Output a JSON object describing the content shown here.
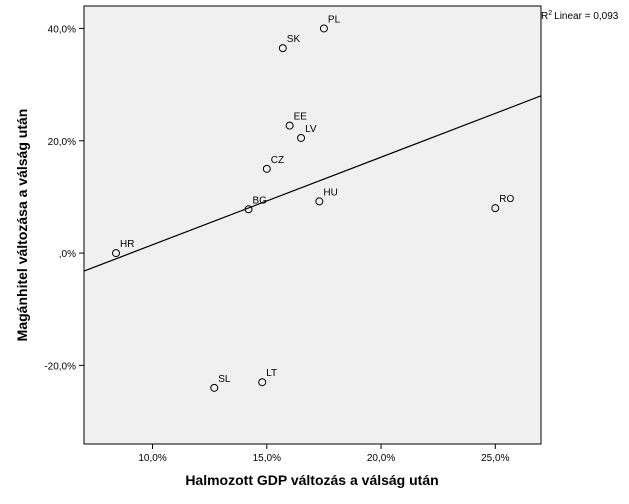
{
  "chart_data": {
    "type": "scatter",
    "xlabel": "Halmozott GDP változás a válság után",
    "ylabel": "Magánhitel változása a válság után",
    "xlim": [
      7.0,
      27.0
    ],
    "ylim": [
      -34.0,
      44.0
    ],
    "x_ticks": [
      {
        "value": 10,
        "label": "10,0%"
      },
      {
        "value": 15,
        "label": "15,0%"
      },
      {
        "value": 20,
        "label": "20,0%"
      },
      {
        "value": 25,
        "label": "25,0%"
      }
    ],
    "y_ticks": [
      {
        "value": -20,
        "label": "-20,0%"
      },
      {
        "value": 0,
        "label": ",0%"
      },
      {
        "value": 20,
        "label": "20,0%"
      },
      {
        "value": 40,
        "label": "40,0%"
      }
    ],
    "points": [
      {
        "label": "PL",
        "x": 17.5,
        "y": 40.0
      },
      {
        "label": "SK",
        "x": 15.7,
        "y": 36.5
      },
      {
        "label": "EE",
        "x": 16.0,
        "y": 22.7
      },
      {
        "label": "LV",
        "x": 16.5,
        "y": 20.5
      },
      {
        "label": "CZ",
        "x": 15.0,
        "y": 15.0
      },
      {
        "label": "BG",
        "x": 14.2,
        "y": 7.8
      },
      {
        "label": "HU",
        "x": 17.3,
        "y": 9.2
      },
      {
        "label": "RO",
        "x": 25.0,
        "y": 8.0
      },
      {
        "label": "HR",
        "x": 8.4,
        "y": 0.0
      },
      {
        "label": "SL",
        "x": 12.7,
        "y": -24.0
      },
      {
        "label": "LT",
        "x": 14.8,
        "y": -23.0
      }
    ],
    "fit_line": {
      "x": [
        7.0,
        27.0
      ],
      "y": [
        -3.2,
        28.0
      ]
    },
    "r2_label": "Linear = 0,093",
    "r2_prefix": "R",
    "r2_sup": "2",
    "grid": false
  },
  "colors": {
    "plot_bg": "#f0f0f0",
    "axis": "#000000",
    "marker": "#000000",
    "line": "#000000"
  }
}
